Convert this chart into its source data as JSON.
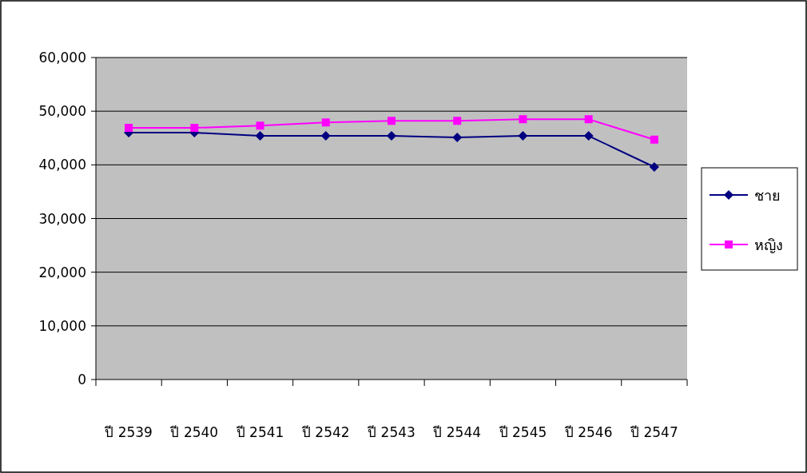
{
  "chart_data": {
    "type": "line",
    "categories": [
      "ปี 2539",
      "ปี 2540",
      "ปี 2541",
      "ปี 2542",
      "ปี 2543",
      "ปี 2544",
      "ปี 2545",
      "ปี 2546",
      "ปี 2547"
    ],
    "series": [
      {
        "name": "ชาย",
        "color": "#000080",
        "marker": "diamond",
        "values": [
          46000,
          46000,
          45400,
          45400,
          45400,
          45100,
          45400,
          45400,
          39600
        ]
      },
      {
        "name": "หญิง",
        "color": "#ff00ff",
        "marker": "square",
        "values": [
          46900,
          46900,
          47300,
          47900,
          48200,
          48200,
          48500,
          48500,
          44700
        ]
      }
    ],
    "ylim": [
      0,
      60000
    ],
    "yticks": [
      {
        "value": 0,
        "label": "0"
      },
      {
        "value": 10000,
        "label": "10,000"
      },
      {
        "value": 20000,
        "label": "20,000"
      },
      {
        "value": 30000,
        "label": "30,000"
      },
      {
        "value": 40000,
        "label": "40,000"
      },
      {
        "value": 50000,
        "label": "50,000"
      },
      {
        "value": 60000,
        "label": "60,000"
      }
    ],
    "grid": "y",
    "legend": "right"
  }
}
